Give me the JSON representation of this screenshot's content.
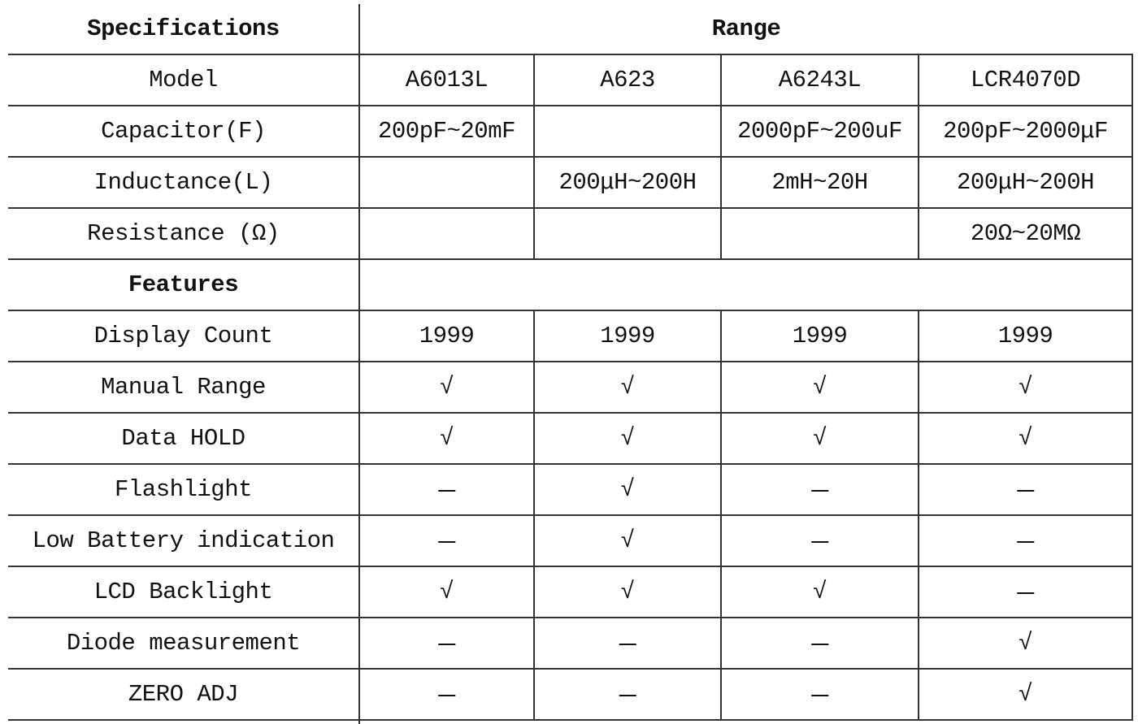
{
  "sections": [
    {
      "title": "Specifications",
      "subtitle": "Range",
      "rows": [
        [
          "Model",
          "A6013L",
          "A623",
          "A6243L",
          "LCR4070D"
        ],
        [
          "Capacitor(F)",
          "200pF~20mF",
          null,
          "2000pF~200uF",
          "200pF~2000μF"
        ],
        [
          "Inductance(L)",
          null,
          "200μH~200H",
          "2mH~20H",
          "200μH~200H"
        ],
        [
          "Resistance (Ω)",
          null,
          null,
          null,
          "20Ω~20MΩ"
        ]
      ]
    },
    {
      "title": "Features",
      "rows": [
        [
          "Display Count",
          "1999",
          "1999",
          "1999",
          "1999"
        ],
        [
          "Manual Range",
          "√",
          "√",
          "√",
          "√"
        ],
        [
          "Data HOLD",
          "√",
          "√",
          "√",
          "√"
        ],
        [
          "Flashlight",
          "－",
          "√",
          "－",
          "－"
        ],
        [
          "Low Battery indication",
          "－",
          "√",
          "－",
          "－"
        ],
        [
          "LCD Backlight",
          "√",
          "√",
          "√",
          "－"
        ],
        [
          "Diode measurement",
          "－",
          "－",
          "－",
          "√"
        ],
        [
          "ZERO ADJ",
          "－",
          "－",
          "－",
          "√"
        ]
      ]
    }
  ]
}
